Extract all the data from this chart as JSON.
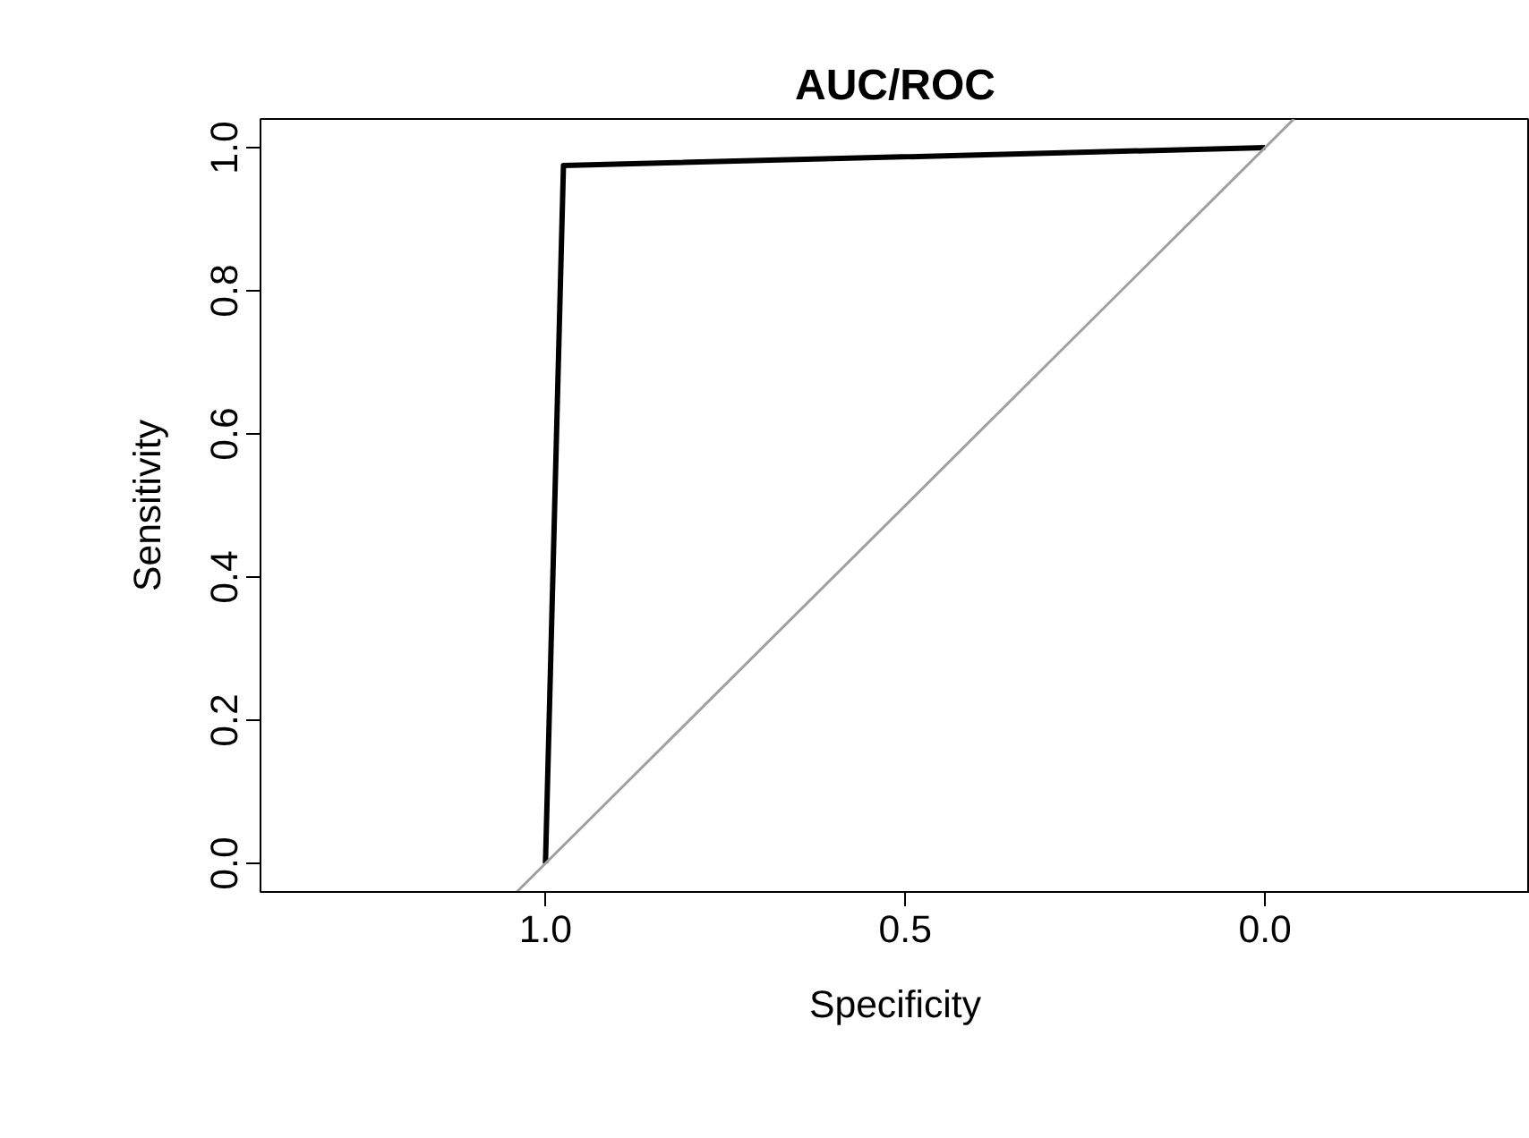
{
  "chart_data": {
    "type": "line",
    "title": "AUC/ROC",
    "xlabel": "Specificity",
    "ylabel": "Sensitivity",
    "xlim": [
      1.396,
      -0.368
    ],
    "ylim": [
      -0.04,
      1.04
    ],
    "xticks": [
      {
        "value": 1.0,
        "label": "1.0"
      },
      {
        "value": 0.5,
        "label": "0.5"
      },
      {
        "value": 0.0,
        "label": "0.0"
      }
    ],
    "yticks": [
      {
        "value": 0.0,
        "label": "0.0"
      },
      {
        "value": 0.2,
        "label": "0.2"
      },
      {
        "value": 0.4,
        "label": "0.4"
      },
      {
        "value": 0.6,
        "label": "0.6"
      },
      {
        "value": 0.8,
        "label": "0.8"
      },
      {
        "value": 1.0,
        "label": "1.0"
      }
    ],
    "grid": false,
    "series": [
      {
        "color": "#000000",
        "x": [
          1.0,
          0.975,
          0.0
        ],
        "values": [
          0.0,
          0.975,
          1.0
        ]
      },
      {
        "color": "#a0a0a0",
        "x": [
          1.04,
          -0.04
        ],
        "values": [
          -0.04,
          1.04
        ]
      }
    ]
  }
}
